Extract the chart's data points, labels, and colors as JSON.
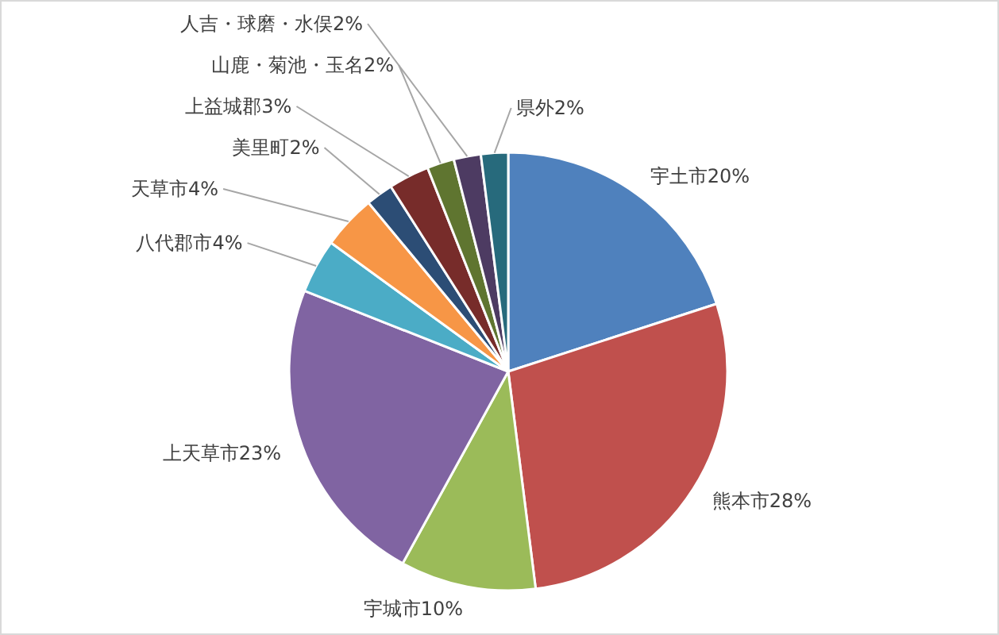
{
  "chart_data": {
    "type": "pie",
    "categories": [
      "宇土市",
      "熊本市",
      "宇城市",
      "上天草市",
      "八代郡市",
      "天草市",
      "美里町",
      "上益城郡",
      "山鹿・菊池・玉名",
      "人吉・球磨・水俣",
      "県外"
    ],
    "values": [
      20,
      28,
      10,
      23,
      4,
      4,
      2,
      3,
      2,
      2,
      2
    ],
    "value_labels": [
      "20%",
      "28%",
      "10%",
      "23%",
      "4%",
      "4%",
      "2%",
      "3%",
      "2%",
      "2%",
      "2%"
    ],
    "colors": [
      "#4f81bd",
      "#c0504d",
      "#9bbb59",
      "#8064a2",
      "#4bacc6",
      "#f79646",
      "#2c4d75",
      "#772c2a",
      "#5f7530",
      "#4d3b62",
      "#276a7c"
    ]
  }
}
